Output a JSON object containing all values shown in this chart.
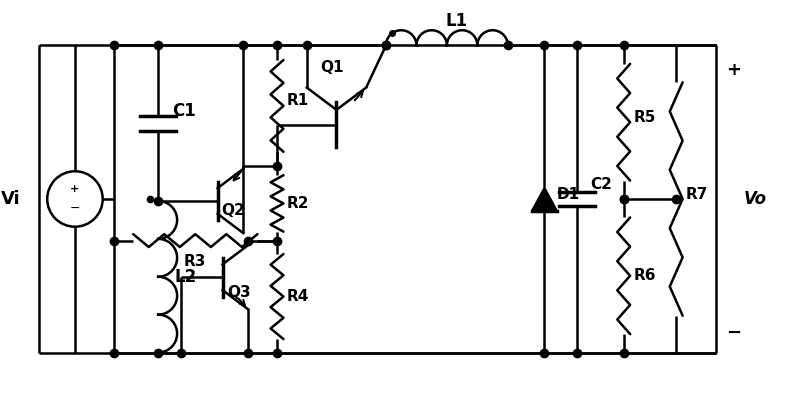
{
  "figsize": [
    8.0,
    3.96
  ],
  "dpi": 100,
  "bg": "#ffffff",
  "lw": 1.8,
  "lw_thick": 2.5,
  "dot_sz": 6,
  "components": {
    "Vi_label": "Vi",
    "labels": [
      "C1",
      "L2",
      "Q2",
      "R1",
      "Q1",
      "L1",
      "R2",
      "R3",
      "Q3",
      "R4",
      "D1",
      "C2",
      "R5",
      "R6",
      "R7",
      "Vo"
    ]
  }
}
